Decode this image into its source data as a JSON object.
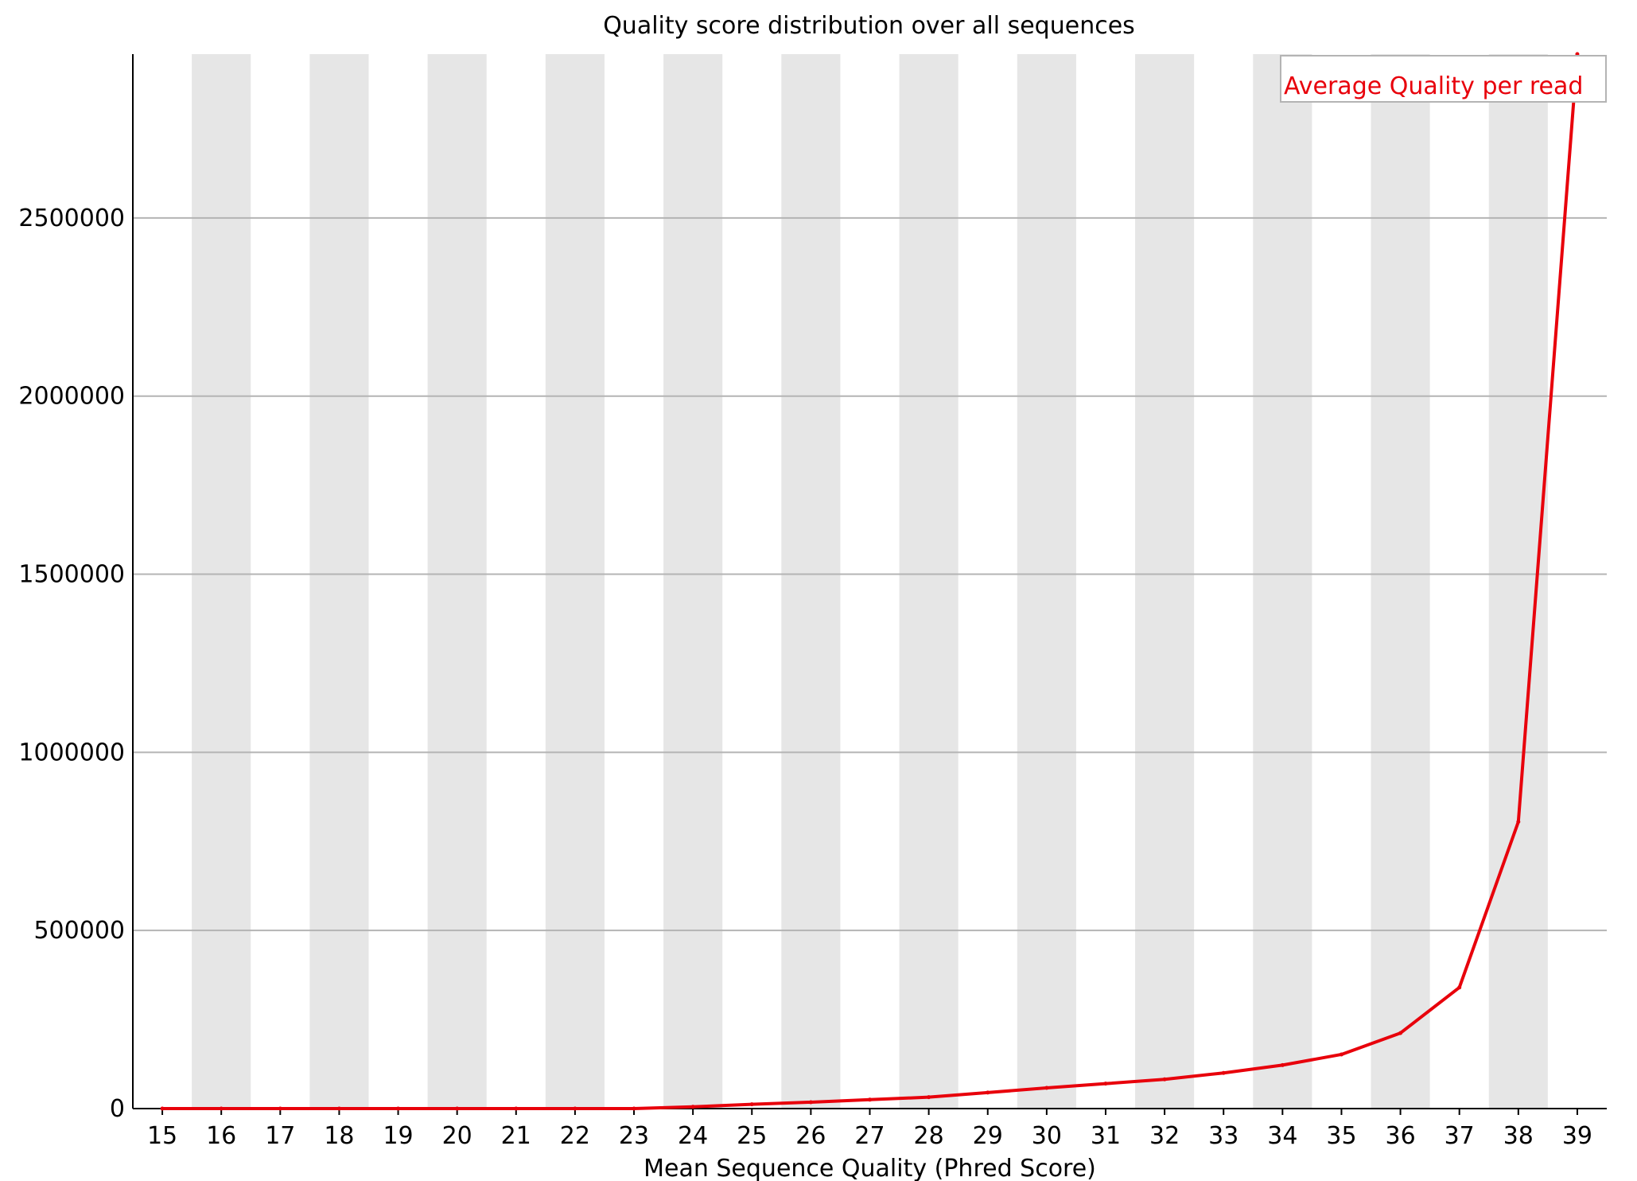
{
  "chart_data": {
    "type": "line",
    "title": "Quality score distribution over all sequences",
    "xlabel": "Mean Sequence Quality (Phred Score)",
    "ylabel": "",
    "x": [
      15,
      16,
      17,
      18,
      19,
      20,
      21,
      22,
      23,
      24,
      25,
      26,
      27,
      28,
      29,
      30,
      31,
      32,
      33,
      34,
      35,
      36,
      37,
      38,
      39
    ],
    "series": [
      {
        "name": "Average Quality per read",
        "color": "#e8000b",
        "values": [
          0,
          0,
          0,
          0,
          0,
          0,
          0,
          0,
          0,
          5000,
          12000,
          18000,
          25000,
          32000,
          45000,
          58000,
          70000,
          82000,
          100000,
          122000,
          152000,
          212000,
          340000,
          805000,
          2960000
        ]
      }
    ],
    "xlim": [
      15,
      39
    ],
    "ylim": [
      0,
      2960000
    ],
    "y_ticks": [
      0,
      500000,
      1000000,
      1500000,
      2000000,
      2500000
    ],
    "y_tick_labels": [
      "0",
      "500000",
      "1000000",
      "1500000",
      "2000000",
      "2500000"
    ],
    "grid": true,
    "alternating_column_shading": true,
    "shade_color": "#e6e6e6",
    "gridline_color": "#b4b4b4",
    "legend_position": "top-right"
  }
}
